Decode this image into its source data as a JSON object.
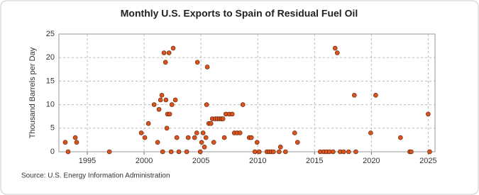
{
  "chart_data": {
    "type": "scatter",
    "title": "Monthly U.S. Exports to Spain of Residual Fuel Oil",
    "y_label": "Thousand Barrels per Day",
    "source": "Source: U.S. Energy Information Administration",
    "color": "#d9541e",
    "grid": true,
    "xlim": [
      1992.5,
      2025.6
    ],
    "xticks": [
      1995,
      2000,
      2005,
      2010,
      2015,
      2020,
      2025
    ],
    "ylim": [
      0,
      25
    ],
    "yticks": [
      0,
      5,
      10,
      15,
      20,
      25
    ],
    "x": [
      1993.06,
      1993.31,
      1993.94,
      1994.06,
      1996.94,
      1999.75,
      2000.06,
      2000.38,
      2000.88,
      2001.19,
      2001.31,
      2001.44,
      2001.56,
      2001.63,
      2001.75,
      2001.88,
      2001.92,
      2002.0,
      2002.06,
      2002.19,
      2002.25,
      2002.38,
      2002.44,
      2002.56,
      2002.75,
      2002.88,
      2003.06,
      2003.75,
      2003.88,
      2004.44,
      2004.63,
      2004.69,
      2004.94,
      2005.06,
      2005.19,
      2005.31,
      2005.44,
      2005.5,
      2005.56,
      2005.69,
      2005.88,
      2006.0,
      2006.13,
      2006.25,
      2006.44,
      2006.63,
      2006.81,
      2006.94,
      2007.06,
      2007.19,
      2007.5,
      2007.75,
      2007.94,
      2008.19,
      2008.44,
      2008.69,
      2009.25,
      2009.44,
      2009.75,
      2009.94,
      2010.13,
      2010.81,
      2011.0,
      2011.19,
      2011.38,
      2011.88,
      2012.0,
      2012.44,
      2013.25,
      2013.5,
      2015.5,
      2015.81,
      2016.06,
      2016.31,
      2016.63,
      2016.81,
      2017.0,
      2017.25,
      2017.56,
      2018.0,
      2018.5,
      2018.63,
      2019.94,
      2020.38,
      2022.56,
      2023.38,
      2023.5,
      2025.0,
      2025.13
    ],
    "values": [
      2,
      0,
      3,
      2,
      0,
      4,
      3,
      6,
      10,
      2,
      9,
      11,
      12,
      0,
      21,
      19,
      11,
      5,
      8,
      21,
      8,
      0,
      10,
      22,
      11,
      3,
      0,
      0,
      3,
      3,
      4,
      19,
      0,
      2,
      4,
      1,
      3,
      10,
      18,
      6,
      6,
      7,
      2,
      7,
      7,
      7,
      7,
      7,
      3,
      8,
      8,
      8,
      4,
      4,
      4,
      10,
      3,
      3,
      0,
      2,
      0,
      0,
      0,
      0,
      0,
      0,
      1,
      0,
      4,
      2,
      0,
      0,
      0,
      0,
      0,
      22,
      21,
      0,
      0,
      0,
      12,
      0,
      4,
      12,
      3,
      0,
      0,
      8,
      0
    ]
  }
}
